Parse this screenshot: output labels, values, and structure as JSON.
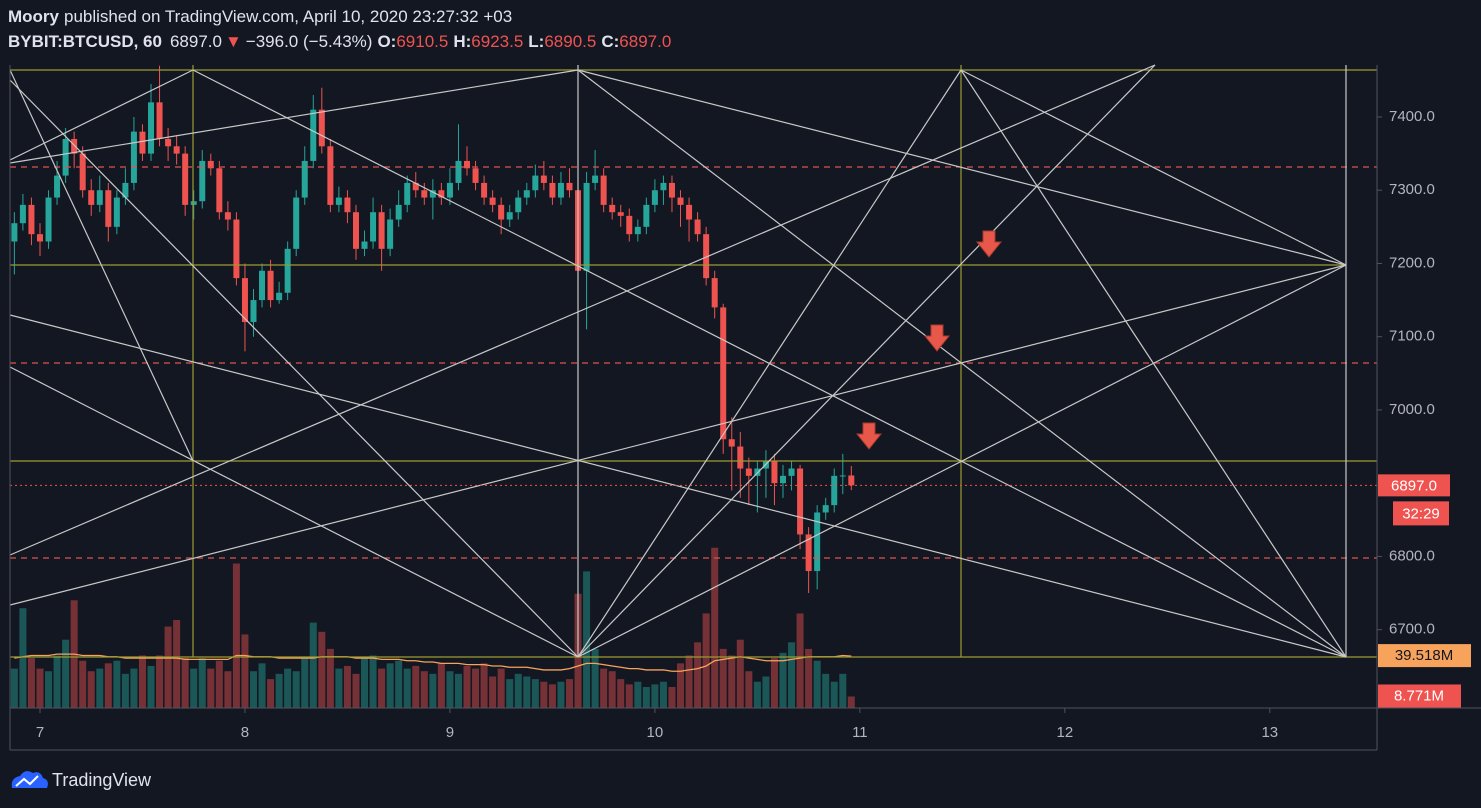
{
  "header": {
    "publisher": "Moory",
    "published": "published on TradingView.com, April 10, 2020 23:27:32 +03",
    "symbol": "BYBIT:BTCUSD, 60",
    "last": "6897.0",
    "arrow": "▼",
    "change": "−396.0 (−5.43%)",
    "o_label": "O:",
    "o": "6910.5",
    "h_label": "H:",
    "h": "6923.5",
    "l_label": "L:",
    "l": "6890.5",
    "c_label": "C:",
    "c": "6897.0"
  },
  "footer": {
    "brand": "TradingView"
  },
  "chart_data": {
    "type": "candlestick",
    "up_color": "#26a69a",
    "down_color": "#ef5350",
    "ma_color": "#f7a35c",
    "x": [
      6.875,
      6.9167,
      6.9583,
      7,
      7.0417,
      7.0833,
      7.125,
      7.1667,
      7.2083,
      7.25,
      7.2917,
      7.3333,
      7.375,
      7.4167,
      7.4583,
      7.5,
      7.5417,
      7.5833,
      7.625,
      7.6667,
      7.7083,
      7.75,
      7.7917,
      7.8333,
      7.875,
      7.9167,
      7.9583,
      8,
      8.0417,
      8.0833,
      8.125,
      8.1667,
      8.2083,
      8.25,
      8.2917,
      8.3333,
      8.375,
      8.4167,
      8.4583,
      8.5,
      8.5417,
      8.5833,
      8.625,
      8.6667,
      8.7083,
      8.75,
      8.7917,
      8.8333,
      8.875,
      8.9167,
      8.9583,
      9,
      9.0417,
      9.0833,
      9.125,
      9.1667,
      9.2083,
      9.25,
      9.2917,
      9.3333,
      9.375,
      9.4167,
      9.4583,
      9.5,
      9.5417,
      9.5833,
      9.625,
      9.6667,
      9.7083,
      9.75,
      9.7917,
      9.8333,
      9.875,
      9.9167,
      9.9583,
      10,
      10.0417,
      10.0833,
      10.125,
      10.1667,
      10.2083,
      10.25,
      10.2917,
      10.3333,
      10.375,
      10.4167,
      10.4583,
      10.5,
      10.5417,
      10.5833,
      10.625,
      10.6667,
      10.7083,
      10.75,
      10.7917,
      10.8333,
      10.875,
      10.9167,
      10.9583
    ],
    "open": [
      7230,
      7255,
      7280,
      7240,
      7230,
      7290,
      7320,
      7370,
      7350,
      7300,
      7280,
      7300,
      7250,
      7290,
      7310,
      7380,
      7350,
      7420,
      7370,
      7360,
      7350,
      7280,
      7285,
      7340,
      7330,
      7270,
      7260,
      7180,
      7120,
      7150,
      7190,
      7150,
      7160,
      7220,
      7290,
      7340,
      7410,
      7360,
      7280,
      7290,
      7270,
      7220,
      7230,
      7270,
      7220,
      7260,
      7280,
      7310,
      7300,
      7290,
      7300,
      7290,
      7310,
      7340,
      7330,
      7310,
      7290,
      7280,
      7260,
      7270,
      7290,
      7300,
      7320,
      7310,
      7290,
      7310,
      7300,
      7190,
      7310,
      7320,
      7280,
      7270,
      7265,
      7240,
      7250,
      7280,
      7300,
      7310,
      7290,
      7280,
      7260,
      7240,
      7180,
      7140,
      6960,
      6950,
      6920,
      6910,
      6920,
      6930,
      6900,
      6910,
      6920,
      6830,
      6780,
      6860,
      6870,
      6910,
      6910.5
    ],
    "high": [
      7270,
      7295,
      7290,
      7255,
      7300,
      7340,
      7385,
      7380,
      7360,
      7315,
      7320,
      7310,
      7300,
      7330,
      7400,
      7390,
      7445,
      7470,
      7385,
      7375,
      7360,
      7300,
      7355,
      7350,
      7340,
      7285,
      7270,
      7200,
      7165,
      7200,
      7205,
      7175,
      7230,
      7300,
      7360,
      7430,
      7440,
      7370,
      7305,
      7300,
      7280,
      7245,
      7290,
      7280,
      7275,
      7300,
      7320,
      7325,
      7310,
      7315,
      7310,
      7330,
      7390,
      7360,
      7340,
      7320,
      7300,
      7290,
      7280,
      7300,
      7310,
      7335,
      7340,
      7320,
      7325,
      7330,
      7310,
      7325,
      7355,
      7330,
      7290,
      7280,
      7275,
      7260,
      7290,
      7315,
      7320,
      7320,
      7300,
      7290,
      7270,
      7250,
      7190,
      7145,
      6990,
      6970,
      6935,
      6930,
      6945,
      6940,
      6925,
      6930,
      6925,
      6840,
      6870,
      6880,
      6920,
      6940,
      6923.5
    ],
    "low": [
      7185,
      7245,
      7225,
      7210,
      7220,
      7280,
      7310,
      7330,
      7290,
      7265,
      7270,
      7230,
      7240,
      7280,
      7300,
      7340,
      7340,
      7360,
      7340,
      7335,
      7265,
      7260,
      7275,
      7320,
      7260,
      7245,
      7170,
      7080,
      7100,
      7140,
      7140,
      7145,
      7150,
      7210,
      7280,
      7330,
      7350,
      7270,
      7270,
      7255,
      7205,
      7210,
      7220,
      7190,
      7210,
      7250,
      7270,
      7290,
      7280,
      7260,
      7280,
      7280,
      7300,
      7320,
      7300,
      7280,
      7270,
      7240,
      7250,
      7260,
      7280,
      7290,
      7300,
      7280,
      7280,
      7290,
      7175,
      7110,
      7300,
      7270,
      7260,
      7250,
      7230,
      7230,
      7240,
      7270,
      7280,
      7270,
      7250,
      7230,
      7230,
      7170,
      7125,
      6940,
      6890,
      6880,
      6870,
      6860,
      6880,
      6870,
      6880,
      6890,
      6810,
      6750,
      6755,
      6850,
      6860,
      6885,
      6890.5
    ],
    "close": [
      7255,
      7280,
      7240,
      7230,
      7290,
      7320,
      7370,
      7350,
      7300,
      7280,
      7300,
      7250,
      7290,
      7310,
      7380,
      7350,
      7420,
      7370,
      7360,
      7350,
      7280,
      7285,
      7340,
      7330,
      7270,
      7260,
      7180,
      7120,
      7150,
      7190,
      7150,
      7160,
      7220,
      7290,
      7340,
      7410,
      7360,
      7280,
      7290,
      7270,
      7220,
      7230,
      7270,
      7220,
      7260,
      7280,
      7310,
      7300,
      7290,
      7300,
      7290,
      7310,
      7340,
      7330,
      7310,
      7290,
      7280,
      7260,
      7270,
      7290,
      7300,
      7320,
      7310,
      7290,
      7310,
      7300,
      7190,
      7310,
      7320,
      7280,
      7270,
      7265,
      7240,
      7250,
      7280,
      7300,
      7310,
      7290,
      7280,
      7260,
      7240,
      7180,
      7140,
      6960,
      6950,
      6920,
      6910,
      6920,
      6930,
      6900,
      6910,
      6920,
      6830,
      6780,
      6860,
      6870,
      6910,
      6910.5,
      6897
    ],
    "volume": [
      30,
      76,
      38,
      30,
      28,
      40,
      52,
      82,
      36,
      28,
      30,
      34,
      36,
      26,
      30,
      40,
      32,
      40,
      62,
      67,
      38,
      30,
      38,
      30,
      36,
      28,
      110,
      56,
      28,
      34,
      22,
      26,
      30,
      28,
      38,
      65,
      58,
      45,
      30,
      32,
      26,
      38,
      40,
      30,
      34,
      36,
      30,
      32,
      28,
      26,
      34,
      28,
      26,
      32,
      30,
      34,
      24,
      30,
      22,
      26,
      24,
      22,
      20,
      18,
      20,
      22,
      87,
      104,
      45,
      30,
      28,
      22,
      18,
      20,
      16,
      18,
      20,
      16,
      34,
      40,
      50,
      72,
      122,
      45,
      40,
      52,
      28,
      20,
      24,
      38,
      42,
      50,
      72,
      45,
      36,
      26,
      20,
      26,
      8.771
    ],
    "volume_ma": [
      38,
      39,
      40,
      40,
      40,
      41,
      41,
      41,
      40,
      40,
      40,
      39,
      39,
      38,
      38,
      38,
      38,
      38,
      38,
      38,
      37,
      37,
      37,
      37,
      37,
      37,
      40,
      40,
      39,
      39,
      39,
      38,
      38,
      38,
      38,
      38,
      39,
      39,
      39,
      39,
      38,
      38,
      38,
      37,
      37,
      37,
      36,
      36,
      35,
      35,
      34,
      34,
      34,
      33,
      33,
      33,
      32,
      32,
      31,
      31,
      31,
      30,
      29,
      29,
      29,
      30,
      32,
      34,
      34,
      33,
      32,
      31,
      30,
      30,
      29,
      29,
      29,
      28,
      28,
      29,
      30,
      32,
      36,
      37,
      38,
      39,
      38,
      37,
      36,
      36,
      36,
      37,
      38,
      39,
      39,
      39,
      39,
      40,
      39.518
    ],
    "xlim": [
      6.8537,
      13.523
    ],
    "xticks": [
      7,
      8,
      9,
      10,
      11,
      12,
      13
    ],
    "ylim": [
      6593,
      7471
    ],
    "yticks": [
      {
        "value": 6700,
        "label": "6700.0"
      },
      {
        "value": 6800,
        "label": "6800.0"
      },
      {
        "value": 7000,
        "label": "7000.0"
      },
      {
        "value": 7100,
        "label": "7100.0"
      },
      {
        "value": 7200,
        "label": "7200.0"
      },
      {
        "value": 7300,
        "label": "7300.0"
      },
      {
        "value": 7400,
        "label": "7400.0"
      }
    ],
    "volume_ylim": [
      0,
      150
    ],
    "price_label": {
      "value": 6897,
      "label": "6897.0"
    },
    "countdown": "32:29",
    "volume_ma_label": {
      "value": 39.518,
      "label": "39.518M"
    },
    "volume_label": {
      "value": 8.771,
      "label": "8.771M"
    }
  }
}
